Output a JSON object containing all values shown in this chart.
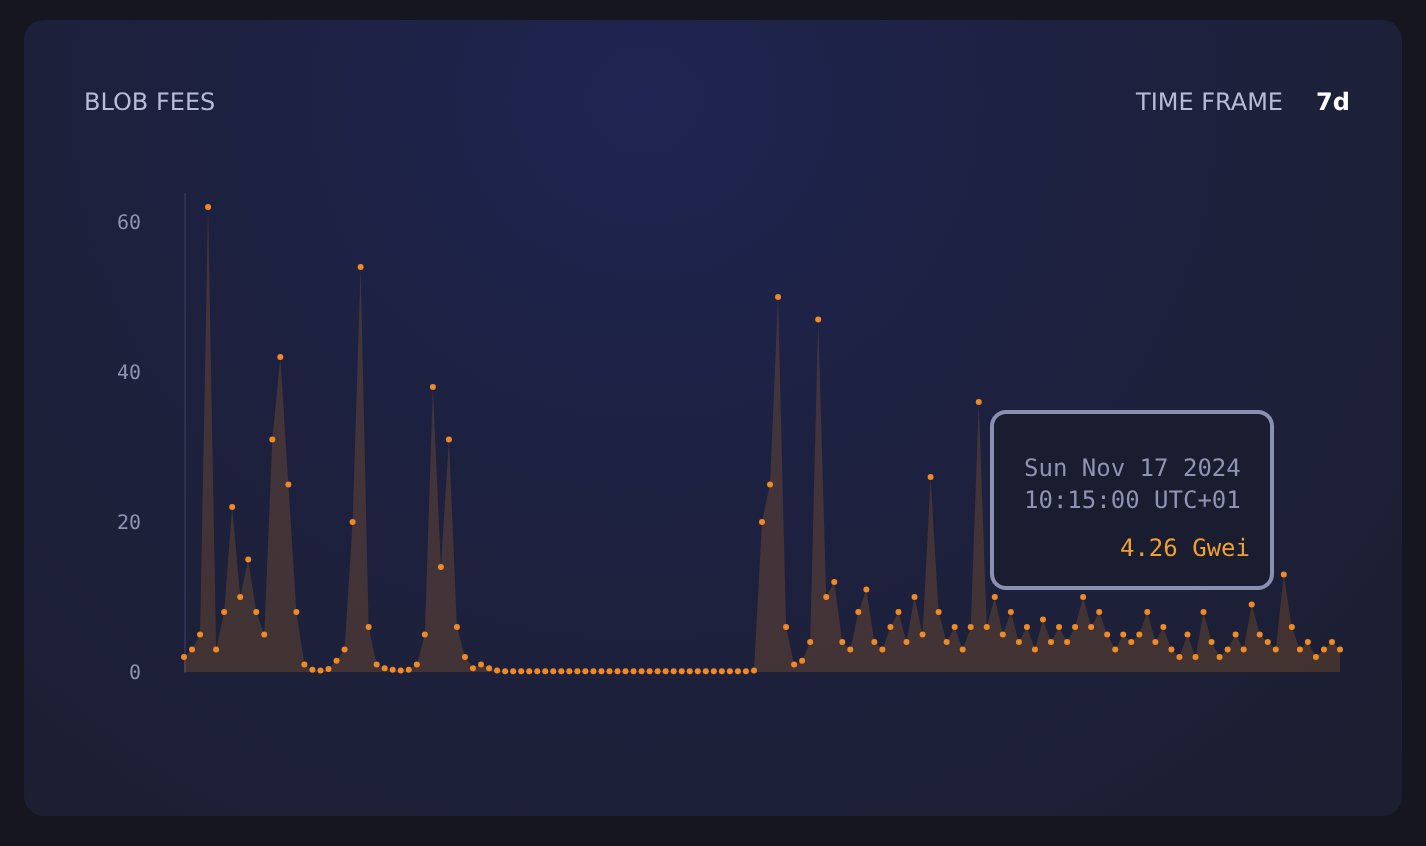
{
  "chart_data": {
    "type": "area",
    "title": "BLOB FEES",
    "annotations": [
      "TIME FRAME",
      "7d",
      "Sun Nov 17 2024",
      "10:15:00 UTC+01",
      "4.26 Gwei"
    ],
    "categories": [
      null,
      null,
      null,
      null,
      null,
      null,
      null,
      null,
      null,
      null,
      null,
      null,
      null,
      null,
      null,
      null,
      null,
      null,
      null,
      null,
      null,
      null,
      null,
      null,
      null,
      null,
      null,
      null,
      null,
      null,
      null,
      null,
      null,
      null,
      null,
      null,
      null,
      null,
      null,
      null,
      null,
      null,
      null,
      null,
      null,
      null,
      null,
      null,
      null,
      null,
      null,
      null,
      null,
      null,
      null,
      null,
      null,
      null,
      null,
      null,
      null,
      null,
      null,
      null,
      null,
      null,
      null,
      null,
      null,
      null,
      null,
      null,
      null,
      null,
      null,
      null,
      null,
      null,
      null,
      null,
      null,
      null,
      null,
      null,
      null,
      null,
      null,
      null,
      null,
      null,
      null,
      null,
      null,
      null,
      null,
      null,
      null,
      null,
      null,
      null,
      null,
      null,
      null,
      null,
      null,
      null,
      null,
      null,
      null,
      null,
      null,
      null,
      null,
      null,
      null,
      null,
      null,
      null,
      null,
      null,
      null,
      null,
      null,
      null,
      null,
      null,
      null,
      null,
      null,
      null,
      null,
      null,
      null,
      null,
      null,
      null,
      null,
      null,
      null,
      null,
      null,
      null,
      null,
      null,
      null
    ],
    "series": [
      {
        "color": "#f08a24",
        "values": [
          2,
          3,
          5,
          62,
          3,
          8,
          22,
          10,
          15,
          8,
          5,
          31,
          42,
          25,
          8,
          1,
          0.3,
          0.2,
          0.4,
          1.5,
          3,
          20,
          54,
          6,
          1,
          0.5,
          0.3,
          0.2,
          0.3,
          1,
          5,
          38,
          14,
          31,
          6,
          2,
          0.5,
          1,
          0.5,
          0.2,
          0.1,
          0.1,
          0.1,
          0.1,
          0.1,
          0.1,
          0.1,
          0.1,
          0.1,
          0.1,
          0.1,
          0.1,
          0.1,
          0.1,
          0.1,
          0.1,
          0.1,
          0.1,
          0.1,
          0.1,
          0.1,
          0.1,
          0.1,
          0.1,
          0.1,
          0.1,
          0.1,
          0.1,
          0.1,
          0.1,
          0.1,
          0.2,
          20,
          25,
          50,
          6,
          1,
          1.5,
          4,
          47,
          10,
          12,
          4,
          3,
          8,
          11,
          4,
          3,
          6,
          8,
          4,
          10,
          5,
          26,
          8,
          4,
          6,
          3,
          6,
          36,
          6,
          10,
          5,
          8,
          4,
          6,
          3,
          7,
          4,
          6,
          4,
          6,
          10,
          6,
          8,
          5,
          3,
          5,
          4,
          5,
          8,
          4,
          6,
          3,
          2,
          5,
          2,
          8,
          4,
          2,
          3,
          5,
          3,
          9,
          5,
          4,
          3,
          13,
          6,
          3,
          4,
          2,
          3,
          4,
          3
        ]
      }
    ],
    "ylim": [
      0,
      64
    ],
    "yticks": [
      0,
      20,
      40,
      60
    ],
    "grid": false,
    "marker": "circle"
  }
}
